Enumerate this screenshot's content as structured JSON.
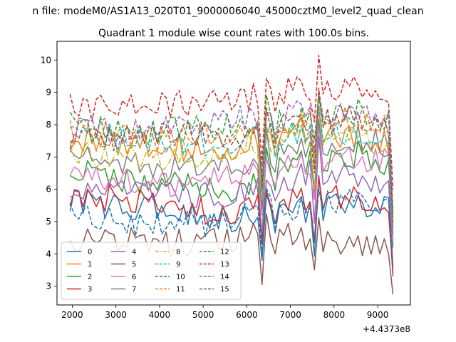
{
  "suptitle": "n file: modeM0/AS1A13_020T01_9000006040_45000cztM0_level2_quad_clean",
  "chart_data": {
    "type": "line",
    "title": "Quadrant 1 module wise count rates with 100.0s bins.",
    "xlabel": "",
    "ylabel": "",
    "x_offset_label": "+4.4373e8",
    "xlim": [
      1650,
      9750
    ],
    "ylim": [
      2.42,
      10.58
    ],
    "x_ticks": [
      2000,
      3000,
      4000,
      5000,
      6000,
      7000,
      8000,
      9000
    ],
    "x_tick_labels": [
      "2000",
      "3000",
      "4000",
      "5000",
      "6000",
      "7000",
      "8000",
      "9000"
    ],
    "y_ticks": [
      3,
      4,
      5,
      6,
      7,
      8,
      9,
      10
    ],
    "y_tick_labels": [
      "3",
      "4",
      "5",
      "6",
      "7",
      "8",
      "9",
      "10"
    ],
    "grid": false,
    "legend": {
      "placement": "lower-left",
      "columns": 4
    },
    "x": {
      "start": 1950,
      "step": 100,
      "count": 75
    },
    "series": [
      {
        "name": "0",
        "color": "#1f77b4",
        "dash": "solid",
        "base": [
          5.6,
          5.5,
          5.4,
          5.2,
          5.1,
          5.2,
          5.4,
          5.5,
          5.7
        ],
        "dip": 3.8,
        "end": 3.3
      },
      {
        "name": "1",
        "color": "#ff7f0e",
        "dash": "solid",
        "base": [
          7.4,
          7.5,
          7.4,
          7.2,
          7.3,
          7.6,
          7.9,
          7.6,
          7.5
        ],
        "dip": 5.5,
        "end": 4.8
      },
      {
        "name": "2",
        "color": "#2ca02c",
        "dash": "solid",
        "base": [
          6.6,
          6.4,
          6.1,
          6.1,
          6.0,
          6.5,
          6.9,
          7.1,
          6.8
        ],
        "dip": 4.5,
        "end": 4.2
      },
      {
        "name": "3",
        "color": "#d62728",
        "dash": "solid",
        "base": [
          5.6,
          5.7,
          5.5,
          5.3,
          5.3,
          5.5,
          5.7,
          5.8,
          5.6
        ],
        "dip": 4.3,
        "end": 3.4
      },
      {
        "name": "4",
        "color": "#9467bd",
        "dash": "solid",
        "base": [
          5.8,
          5.9,
          5.9,
          5.8,
          5.9,
          6.2,
          6.5,
          6.4,
          6.1
        ],
        "dip": 4.6,
        "end": 3.6
      },
      {
        "name": "5",
        "color": "#8c564b",
        "dash": "solid",
        "base": [
          4.4,
          4.5,
          4.4,
          4.3,
          4.4,
          4.6,
          4.4,
          4.3,
          4.3
        ],
        "dip": 3.05,
        "end": 2.75
      },
      {
        "name": "6",
        "color": "#e377c2",
        "dash": "solid",
        "base": [
          6.4,
          6.3,
          6.0,
          6.2,
          6.5,
          6.7,
          6.8,
          6.9,
          6.9
        ],
        "dip": 5.2,
        "end": 4.4
      },
      {
        "name": "7",
        "color": "#7f7f7f",
        "dash": "solid",
        "base": [
          7.1,
          6.9,
          6.6,
          6.6,
          6.8,
          7.1,
          7.3,
          7.6,
          7.3
        ],
        "dip": 5.4,
        "end": 4.6
      },
      {
        "name": "8",
        "color": "#bcbd22",
        "dash": "dashdot",
        "base": [
          7.3,
          7.0,
          6.9,
          7.1,
          7.2,
          7.6,
          7.6,
          7.6,
          7.3
        ],
        "dip": 5.7,
        "end": 4.9
      },
      {
        "name": "9",
        "color": "#17becf",
        "dash": "dashed",
        "base": [
          7.7,
          7.6,
          7.4,
          7.3,
          7.4,
          7.6,
          7.7,
          7.8,
          7.6
        ],
        "dip": 5.9,
        "end": 4.9
      },
      {
        "name": "10",
        "color": "#1f77b4",
        "dash": "dashed",
        "base": [
          5.3,
          5.1,
          4.9,
          4.9,
          5.1,
          5.4,
          5.5,
          5.7,
          5.4
        ],
        "dip": 4.0,
        "end": 3.6
      },
      {
        "name": "11",
        "color": "#ff7f0e",
        "dash": "dashed",
        "base": [
          7.8,
          7.7,
          7.6,
          7.7,
          7.8,
          8.0,
          8.1,
          8.2,
          7.8
        ],
        "dip": 6.2,
        "end": 5.0
      },
      {
        "name": "12",
        "color": "#2ca02c",
        "dash": "dashed",
        "base": [
          8.0,
          7.8,
          7.8,
          7.9,
          7.9,
          8.1,
          8.3,
          8.4,
          8.1
        ],
        "dip": 6.3,
        "end": 5.2
      },
      {
        "name": "13",
        "color": "#d62728",
        "dash": "dashed",
        "base": [
          8.5,
          8.6,
          8.7,
          8.6,
          8.7,
          9.0,
          9.1,
          9.2,
          8.8
        ],
        "dip": 6.8,
        "end": 6.0
      },
      {
        "name": "14",
        "color": "#9467bd",
        "dash": "dashed",
        "base": [
          7.9,
          7.8,
          7.9,
          8.1,
          8.1,
          8.3,
          8.4,
          8.4,
          8.0
        ],
        "dip": 6.5,
        "end": 5.4
      },
      {
        "name": "15",
        "color": "#8c564b",
        "dash": "dashed",
        "base": [
          7.6,
          7.5,
          7.6,
          7.7,
          7.6,
          7.9,
          8.0,
          8.2,
          7.8
        ],
        "dip": 6.0,
        "end": 5.0
      }
    ]
  }
}
